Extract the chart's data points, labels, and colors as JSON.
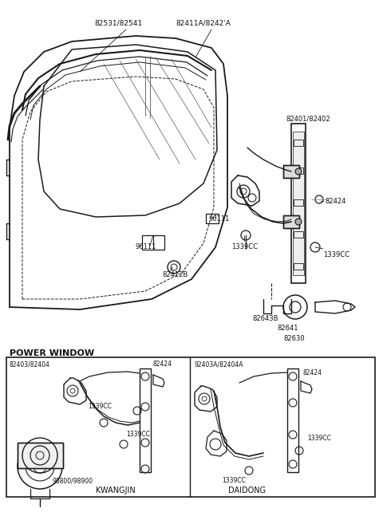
{
  "bg_color": "#ffffff",
  "fig_width": 4.8,
  "fig_height": 6.57,
  "dpi": 100,
  "lc": "#1a1a1a",
  "power_window_label": "POWER WINDOW",
  "kwangjin_label": "KWANGJIN",
  "daidong_label": "DAIDONG"
}
